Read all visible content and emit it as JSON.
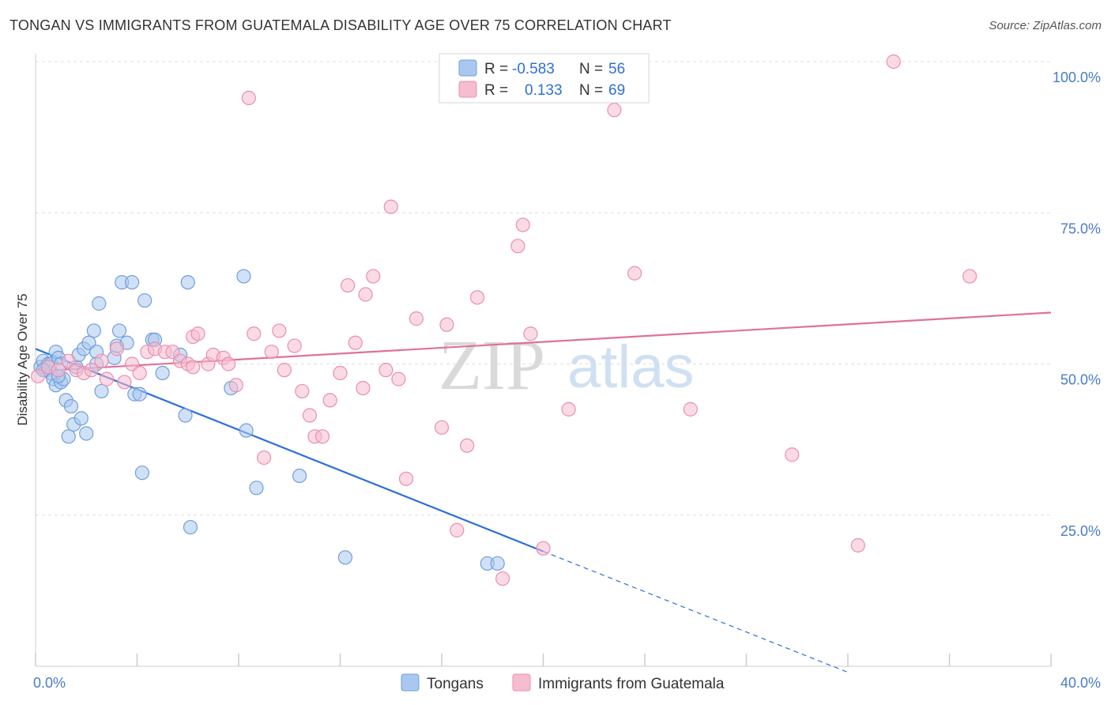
{
  "header": {
    "title": "TONGAN VS IMMIGRANTS FROM GUATEMALA DISABILITY AGE OVER 75 CORRELATION CHART",
    "source": "Source: ZipAtlas.com"
  },
  "watermark": {
    "zip": "ZIP",
    "atlas": "atlas"
  },
  "legend_box": {
    "rows": [
      {
        "r_label": "R =",
        "r_value": "-0.583",
        "n_label": "N =",
        "n_value": "56",
        "color": "#aac8ef"
      },
      {
        "r_label": "R =",
        "r_value": "0.133",
        "n_label": "N =",
        "n_value": "69",
        "color": "#f6bcd0"
      }
    ]
  },
  "colors": {
    "blue_fill": "#aac8ef",
    "blue_stroke": "#6f9fdc",
    "blue_line": "#2d6fd4",
    "pink_fill": "#f6bcd0",
    "pink_stroke": "#e98fae",
    "pink_line": "#e0709a",
    "grid": "#dddddd",
    "tick_text": "#4a7cc7"
  },
  "chart_data": {
    "type": "scatter",
    "title": "TONGAN VS IMMIGRANTS FROM GUATEMALA DISABILITY AGE OVER 75 CORRELATION CHART",
    "xlabel": "",
    "ylabel": "Disability Age Over 75",
    "xlim": [
      0,
      40
    ],
    "ylim": [
      0,
      100
    ],
    "x_tick_labels": [
      "0.0%",
      "40.0%"
    ],
    "y_tick_labels": [
      "25.0%",
      "50.0%",
      "75.0%",
      "100.0%"
    ],
    "y_ticks": [
      25,
      50,
      75,
      100
    ],
    "grid": true,
    "legend_placement": "bottom",
    "series": [
      {
        "name": "Tongans",
        "color": "#aac8ef",
        "points": [
          [
            0.2,
            49.5
          ],
          [
            0.3,
            50.5
          ],
          [
            0.4,
            49.0
          ],
          [
            0.5,
            50.0
          ],
          [
            0.6,
            48.5
          ],
          [
            0.6,
            50.0
          ],
          [
            0.7,
            47.5
          ],
          [
            0.8,
            52.0
          ],
          [
            0.8,
            46.5
          ],
          [
            0.9,
            51.0
          ],
          [
            1.0,
            47.0
          ],
          [
            1.1,
            47.5
          ],
          [
            1.2,
            44.0
          ],
          [
            1.3,
            38.0
          ],
          [
            1.4,
            43.0
          ],
          [
            1.5,
            40.0
          ],
          [
            1.6,
            49.5
          ],
          [
            1.7,
            51.5
          ],
          [
            1.8,
            41.0
          ],
          [
            1.9,
            52.5
          ],
          [
            2.0,
            38.5
          ],
          [
            2.1,
            53.5
          ],
          [
            2.3,
            55.5
          ],
          [
            2.4,
            52.0
          ],
          [
            2.5,
            60.0
          ],
          [
            2.6,
            45.5
          ],
          [
            3.1,
            51.0
          ],
          [
            3.2,
            53.0
          ],
          [
            3.3,
            55.5
          ],
          [
            3.4,
            63.5
          ],
          [
            3.6,
            53.5
          ],
          [
            3.8,
            63.5
          ],
          [
            3.9,
            45.0
          ],
          [
            4.1,
            45.0
          ],
          [
            4.2,
            32.0
          ],
          [
            4.3,
            60.5
          ],
          [
            4.6,
            54.0
          ],
          [
            4.7,
            54.0
          ],
          [
            5.0,
            48.5
          ],
          [
            5.7,
            51.5
          ],
          [
            5.9,
            41.5
          ],
          [
            6.0,
            63.5
          ],
          [
            6.1,
            23.0
          ],
          [
            7.7,
            46.0
          ],
          [
            8.2,
            64.5
          ],
          [
            8.3,
            39.0
          ],
          [
            8.7,
            29.5
          ],
          [
            10.4,
            31.5
          ],
          [
            12.2,
            18.0
          ],
          [
            17.8,
            17.0
          ],
          [
            18.2,
            17.0
          ],
          [
            0.5,
            49.5
          ],
          [
            0.9,
            48.0
          ],
          [
            2.4,
            50.0
          ],
          [
            1.0,
            50.0
          ],
          [
            0.3,
            49.0
          ]
        ]
      },
      {
        "name": "Immigrants from Guatemala",
        "color": "#f6bcd0",
        "points": [
          [
            0.1,
            48.0
          ],
          [
            0.5,
            49.5
          ],
          [
            0.9,
            49.0
          ],
          [
            1.3,
            50.5
          ],
          [
            1.6,
            49.0
          ],
          [
            1.9,
            48.5
          ],
          [
            2.2,
            49.0
          ],
          [
            2.6,
            50.5
          ],
          [
            2.8,
            47.5
          ],
          [
            3.2,
            52.5
          ],
          [
            3.5,
            47.0
          ],
          [
            3.8,
            50.0
          ],
          [
            4.1,
            48.5
          ],
          [
            4.4,
            52.0
          ],
          [
            4.7,
            52.5
          ],
          [
            5.1,
            52.0
          ],
          [
            5.4,
            52.0
          ],
          [
            5.7,
            50.5
          ],
          [
            6.0,
            50.0
          ],
          [
            6.2,
            54.5
          ],
          [
            6.4,
            55.0
          ],
          [
            6.8,
            50.0
          ],
          [
            7.0,
            51.5
          ],
          [
            7.4,
            51.0
          ],
          [
            7.6,
            50.0
          ],
          [
            7.9,
            46.5
          ],
          [
            8.4,
            94.0
          ],
          [
            8.6,
            55.0
          ],
          [
            9.0,
            34.5
          ],
          [
            9.3,
            52.0
          ],
          [
            9.6,
            55.5
          ],
          [
            9.8,
            49.0
          ],
          [
            10.2,
            53.0
          ],
          [
            10.5,
            45.5
          ],
          [
            10.8,
            41.5
          ],
          [
            11.0,
            38.0
          ],
          [
            11.3,
            38.0
          ],
          [
            11.6,
            44.0
          ],
          [
            12.0,
            48.5
          ],
          [
            12.3,
            63.0
          ],
          [
            12.6,
            53.5
          ],
          [
            12.9,
            46.0
          ],
          [
            13.0,
            61.5
          ],
          [
            13.3,
            64.5
          ],
          [
            13.8,
            49.0
          ],
          [
            14.0,
            76.0
          ],
          [
            14.3,
            47.5
          ],
          [
            14.6,
            31.0
          ],
          [
            15.0,
            57.5
          ],
          [
            16.0,
            39.5
          ],
          [
            16.2,
            56.5
          ],
          [
            16.6,
            22.5
          ],
          [
            17.0,
            36.5
          ],
          [
            17.4,
            61.0
          ],
          [
            18.4,
            14.5
          ],
          [
            19.0,
            69.5
          ],
          [
            19.2,
            73.0
          ],
          [
            19.5,
            55.0
          ],
          [
            20.0,
            19.5
          ],
          [
            21.0,
            42.5
          ],
          [
            21.5,
            100.0
          ],
          [
            22.8,
            92.0
          ],
          [
            23.6,
            65.0
          ],
          [
            25.8,
            42.5
          ],
          [
            29.8,
            35.0
          ],
          [
            32.4,
            20.0
          ],
          [
            33.8,
            100.0
          ],
          [
            36.8,
            64.5
          ],
          [
            6.2,
            49.5
          ]
        ]
      }
    ],
    "trend_lines": [
      {
        "series": "Tongans",
        "x_start": 0,
        "y_start": 52.5,
        "x_solid_end": 20.0,
        "y_solid_end": 19.0,
        "x_dashed_end": 32.0,
        "y_dashed_end": -1.0
      },
      {
        "series": "Immigrants from Guatemala",
        "x_start": 0,
        "y_start": 48.8,
        "x_end": 40.0,
        "y_end": 58.5
      }
    ]
  },
  "bottom_legend": [
    {
      "label": "Tongans",
      "color": "#aac8ef"
    },
    {
      "label": "Immigrants from Guatemala",
      "color": "#f6bcd0"
    }
  ]
}
